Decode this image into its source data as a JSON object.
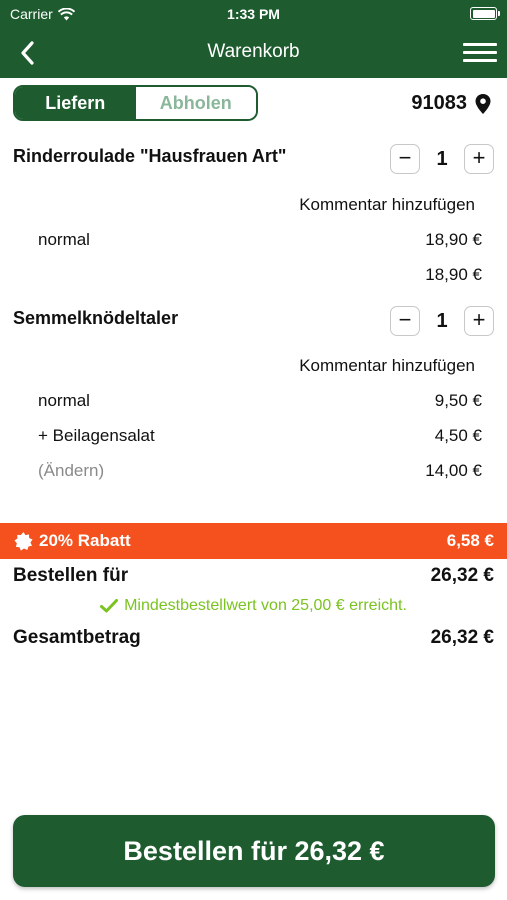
{
  "status_bar": {
    "carrier": "Carrier",
    "time": "1:33 PM"
  },
  "nav": {
    "title": "Warenkorb"
  },
  "mode": {
    "deliver": "Liefern",
    "pickup": "Abholen",
    "active": "Liefern"
  },
  "location": {
    "zip": "91083"
  },
  "items": [
    {
      "name": "Rinderroulade \"Hausfrauen Art\"",
      "quantity": "1",
      "comment": "Kommentar hinzufügen",
      "options": [
        {
          "label": "normal",
          "price": "18,90 €"
        }
      ],
      "total": "18,90 €"
    },
    {
      "name": "Semmelknödeltaler",
      "quantity": "1",
      "comment": "Kommentar hinzufügen",
      "options": [
        {
          "label": "normal",
          "price": "9,50 €"
        },
        {
          "label": "+ Beilagensalat",
          "price": "4,50 €"
        }
      ],
      "change_label": "(Ändern)",
      "total": "14,00 €"
    }
  ],
  "stepper": {
    "minus": "−",
    "plus": "+"
  },
  "discount": {
    "label": "20% Rabatt",
    "value": "6,58 €"
  },
  "order_for": {
    "label": "Bestellen für",
    "value": "26,32 €"
  },
  "min_order_note": "Mindestbestellwert von 25,00 € erreicht.",
  "grand_total": {
    "label": "Gesamtbetrag",
    "value": "26,32 €"
  },
  "order_button": "Bestellen für 26,32 €",
  "colors": {
    "primary": "#1e5c2f",
    "discount": "#f4511e",
    "success": "#7bc320"
  }
}
